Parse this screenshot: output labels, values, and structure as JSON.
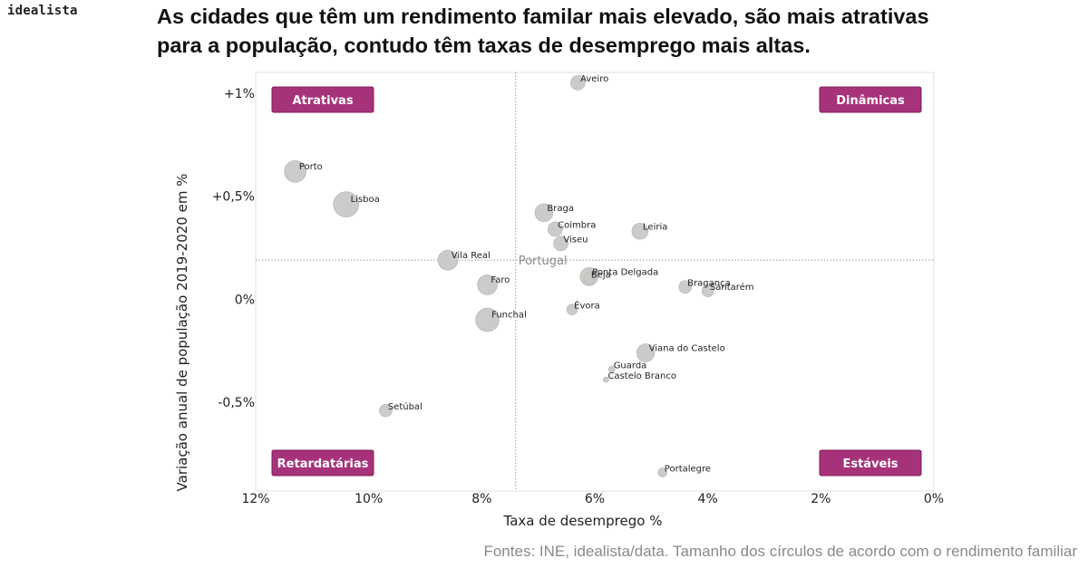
{
  "brand": {
    "logo_text": "idealista"
  },
  "header": {
    "title_line1": "As cidades que têm um rendimento familar mais elevado, são mais atrativas",
    "title_line2": "para a população, contudo têm taxas de desemprego mais altas."
  },
  "footer": {
    "source": "Fontes: INE, idealista/data. Tamanho dos círculos de acordo com o rendimento familiar"
  },
  "colors": {
    "bubble": "#c9c8c6",
    "bubble_stroke": "#b5b4b2",
    "quadrant_label_bg": "#a6327a",
    "reference_line": "#9a9a9a"
  },
  "chart_data": {
    "type": "scatter",
    "title": "",
    "xlabel": "Taxa de desemprego %",
    "ylabel": "Variação anual de população 2019-2020 em %",
    "xlim": [
      12,
      0
    ],
    "x_reversed": true,
    "ylim": [
      -0.93,
      1.1
    ],
    "x_ticks": [
      {
        "value": 12,
        "label": "12%"
      },
      {
        "value": 10,
        "label": "10%"
      },
      {
        "value": 8,
        "label": "8%"
      },
      {
        "value": 6,
        "label": "6%"
      },
      {
        "value": 4,
        "label": "4%"
      },
      {
        "value": 2,
        "label": "2%"
      },
      {
        "value": 0,
        "label": "0%"
      }
    ],
    "y_ticks": [
      {
        "value": 1.0,
        "label": "+1%"
      },
      {
        "value": 0.5,
        "label": "+0,5%"
      },
      {
        "value": 0.0,
        "label": "0%"
      },
      {
        "value": -0.5,
        "label": "-0,5%"
      }
    ],
    "grid": false,
    "reference": {
      "label": "Portugal",
      "x": 7.4,
      "y": 0.19
    },
    "quadrant_labels": [
      {
        "label": "Atrativas",
        "position": "top-left"
      },
      {
        "label": "Dinâmicas",
        "position": "top-right"
      },
      {
        "label": "Retardatárias",
        "position": "bottom-left"
      },
      {
        "label": "Estáveis",
        "position": "bottom-right"
      }
    ],
    "size_meaning": "rendimento familiar",
    "points": [
      {
        "name": "Aveiro",
        "x": 6.3,
        "y": 1.05,
        "size": 8
      },
      {
        "name": "Porto",
        "x": 11.3,
        "y": 0.62,
        "size": 12
      },
      {
        "name": "Lisboa",
        "x": 10.4,
        "y": 0.46,
        "size": 14
      },
      {
        "name": "Braga",
        "x": 6.9,
        "y": 0.42,
        "size": 10
      },
      {
        "name": "Coimbra",
        "x": 6.7,
        "y": 0.34,
        "size": 8
      },
      {
        "name": "Viseu",
        "x": 6.6,
        "y": 0.27,
        "size": 8
      },
      {
        "name": "Leiria",
        "x": 5.2,
        "y": 0.33,
        "size": 9
      },
      {
        "name": "Vila Real",
        "x": 8.6,
        "y": 0.19,
        "size": 11
      },
      {
        "name": "Ponta Delgada",
        "x": 6.1,
        "y": 0.11,
        "size": 10
      },
      {
        "name": "Beja",
        "x": 6.1,
        "y": 0.1,
        "size": 6
      },
      {
        "name": "Faro",
        "x": 7.9,
        "y": 0.07,
        "size": 11
      },
      {
        "name": "Bragança",
        "x": 4.4,
        "y": 0.06,
        "size": 7
      },
      {
        "name": "Santarém",
        "x": 4.0,
        "y": 0.04,
        "size": 6.5
      },
      {
        "name": "Évora",
        "x": 6.4,
        "y": -0.05,
        "size": 6
      },
      {
        "name": "Funchal",
        "x": 7.9,
        "y": -0.1,
        "size": 13
      },
      {
        "name": "Viana do Castelo",
        "x": 5.1,
        "y": -0.26,
        "size": 10
      },
      {
        "name": "Guarda",
        "x": 5.7,
        "y": -0.34,
        "size": 3.5
      },
      {
        "name": "Castelo Branco",
        "x": 5.8,
        "y": -0.39,
        "size": 3
      },
      {
        "name": "Setúbal",
        "x": 9.7,
        "y": -0.54,
        "size": 7
      },
      {
        "name": "Portalegre",
        "x": 4.8,
        "y": -0.84,
        "size": 5
      }
    ]
  }
}
